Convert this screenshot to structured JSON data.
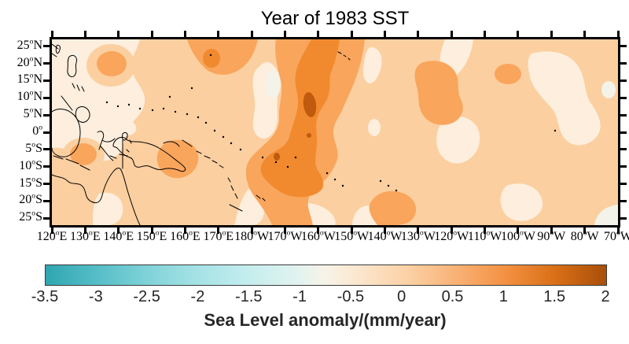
{
  "title": "Year of 1983 SST",
  "colorbar": {
    "label": "Sea Level anomaly/(mm/year)",
    "tick_labels": [
      "-3.5",
      "-3",
      "-2.5",
      "-2",
      "-1.5",
      "-1",
      "-0.5",
      "0",
      "0.5",
      "1",
      "1.5",
      "2"
    ],
    "gradient": [
      [
        "0%",
        "#2fa6b1"
      ],
      [
        "9%",
        "#55bdc7"
      ],
      [
        "18%",
        "#7fd2d8"
      ],
      [
        "27%",
        "#a5e2e6"
      ],
      [
        "36%",
        "#c4edee"
      ],
      [
        "45%",
        "#e2f3f0"
      ],
      [
        "50%",
        "#f7f3e7"
      ],
      [
        "55%",
        "#fbe8d2"
      ],
      [
        "64%",
        "#fbd3a8"
      ],
      [
        "73%",
        "#f8b377"
      ],
      [
        "82%",
        "#f39142"
      ],
      [
        "91%",
        "#d96f16"
      ],
      [
        "100%",
        "#a84f0a"
      ]
    ]
  },
  "chart_data": {
    "type": "filled-contour-map",
    "title": "Year of 1983 SST",
    "region": "Tropical Pacific Ocean",
    "x_tick_labels": [
      "120°E",
      "130°E",
      "140°E",
      "150°E",
      "160°E",
      "170°E",
      "180°W",
      "170°W",
      "160°W",
      "150°W",
      "140°W",
      "130°W",
      "120°W",
      "110°W",
      "100°W",
      "90°W",
      "80°W",
      "70°W"
    ],
    "x_tick_lons": [
      120,
      130,
      140,
      150,
      160,
      170,
      180,
      190,
      200,
      210,
      220,
      230,
      240,
      250,
      260,
      270,
      280,
      290
    ],
    "y_tick_labels": [
      "25°N",
      "20°N",
      "15°N",
      "10°N",
      "5°N",
      "0°",
      "5°S",
      "10°S",
      "15°S",
      "20°S",
      "25°S"
    ],
    "y_tick_lats": [
      25,
      20,
      15,
      10,
      5,
      0,
      -5,
      -10,
      -15,
      -20,
      -25
    ],
    "lon_range": [
      120,
      290
    ],
    "lat_range": [
      -27,
      27
    ],
    "colorbar_title": "Sea Level anomaly/(mm/year)",
    "colorbar_ticks": [
      -3.5,
      -3,
      -2.5,
      -2,
      -1.5,
      -1,
      -0.5,
      0,
      0.5,
      1,
      1.5,
      2
    ],
    "contour_interval": 0.5,
    "value_units": "mm/year",
    "palette": {
      "L0": "#f4f3e9",
      "L1": "#fdeedd",
      "L2": "#fbcfa0",
      "L3": "#f9a55c",
      "L4": "#f18a2e",
      "L5": "#c05a0e"
    },
    "palette_values": {
      "L0": "-0.5 to 0",
      "L1": "0 to 0.5",
      "L2": "0.5 to 1",
      "L3": "1 to 1.5",
      "L4": "1.5 to 2",
      "L5": "above 2"
    },
    "coastline_color": "#000000",
    "features": [
      {
        "region": "central equatorial Pacific band ~170°W-155°W, 15°N to 20°S",
        "anomaly_mm_per_year": "1.5 to 2, closed core above 2 near 10°N 160°W and small cores near 2°N and 8°S"
      },
      {
        "region": "western warm patches: ~140°E 20°N, ~172°E 22°N, Banda Sea ~125°E 8°S, Solomon Sea ~162°E 8°S, ~110°W 10°N, ~125°W 20°S",
        "anomaly_mm_per_year": "1 to 1.5"
      },
      {
        "region": "most of the basin background",
        "anomaly_mm_per_year": "0.5 to 1"
      },
      {
        "region": "pale patches: west of band ~175°W, NW corner near Philippines, central-east ~145°W-120°W, far-east edge",
        "anomaly_mm_per_year": "0 to 0.5"
      },
      {
        "region": "small near-white spots on eastern boundary and SE corner",
        "anomaly_mm_per_year": "-0.5 to 0"
      }
    ]
  }
}
